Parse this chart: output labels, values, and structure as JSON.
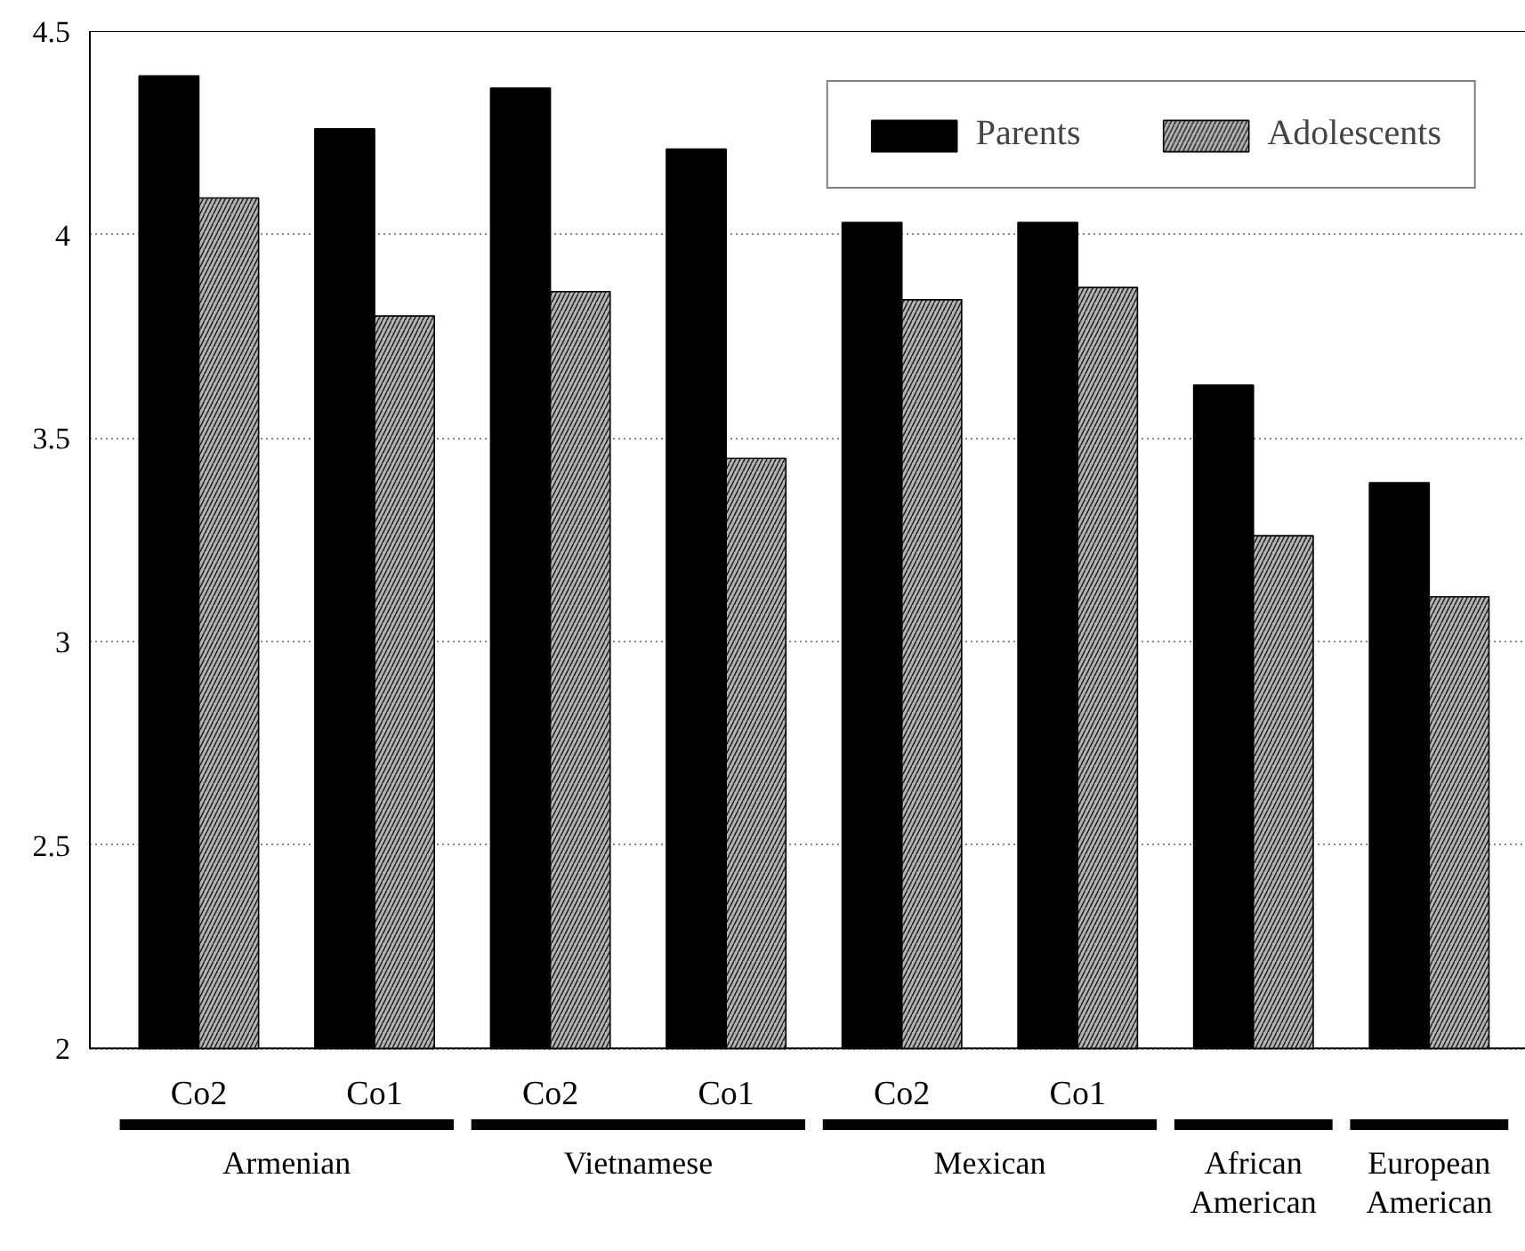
{
  "chart_data": {
    "type": "bar",
    "categories": [
      "Co2",
      "Co1",
      "Co2",
      "Co1",
      "Co2",
      "Co1",
      null,
      null
    ],
    "series": [
      {
        "name": "Parents",
        "color": "#000000",
        "values": [
          4.39,
          4.26,
          4.36,
          4.21,
          4.03,
          4.03,
          3.63,
          3.39
        ]
      },
      {
        "name": "Adolescents",
        "color": "#b4b4b4",
        "values": [
          4.09,
          3.8,
          3.86,
          3.45,
          3.84,
          3.87,
          3.26,
          3.11
        ]
      }
    ],
    "annotations": [
      "Armenian",
      "Vietnamese",
      "Mexican",
      "African American",
      "European American"
    ],
    "ylim": [
      2,
      4.5
    ],
    "yticks": [
      2,
      2.5,
      3,
      3.5,
      4,
      4.5
    ],
    "grid": "y",
    "legend": "top right"
  }
}
